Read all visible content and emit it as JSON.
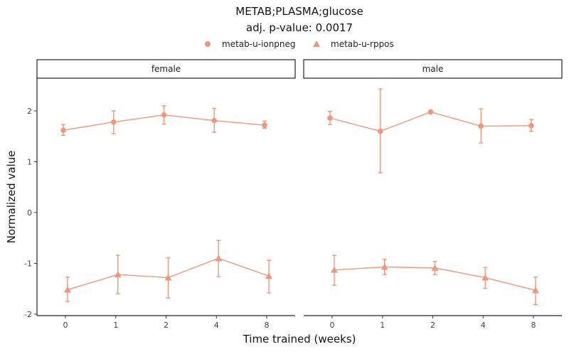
{
  "chart_data": {
    "type": "line",
    "title": "METAB;PLASMA;glucose",
    "subtitle": "adj. p-value: 0.0017",
    "xlabel": "Time trained (weeks)",
    "ylabel": "Normalized value",
    "categories": [
      "0",
      "1",
      "2",
      "4",
      "8"
    ],
    "yticks": [
      -2,
      -1,
      0,
      1,
      2
    ],
    "ylim": [
      -2.03,
      2.55
    ],
    "color": "#f0967a",
    "legend": {
      "position": "top",
      "entries": [
        {
          "name": "metab-u-ionpneg",
          "shape": "circle"
        },
        {
          "name": "metab-u-rppos",
          "shape": "triangle"
        }
      ]
    },
    "panels": [
      {
        "label": "female",
        "series": [
          {
            "name": "metab-u-ionpneg",
            "values": [
              1.62,
              1.78,
              1.92,
              1.81,
              1.72
            ],
            "lower": [
              1.52,
              1.55,
              1.74,
              1.58,
              1.66
            ],
            "upper": [
              1.73,
              2.0,
              2.1,
              2.05,
              1.8
            ]
          },
          {
            "name": "metab-u-rppos",
            "values": [
              -1.52,
              -1.22,
              -1.28,
              -0.9,
              -1.25
            ],
            "lower": [
              -1.75,
              -1.6,
              -1.68,
              -1.26,
              -1.58
            ],
            "upper": [
              -1.27,
              -0.84,
              -0.89,
              -0.55,
              -0.94
            ]
          }
        ]
      },
      {
        "label": "male",
        "series": [
          {
            "name": "metab-u-ionpneg",
            "values": [
              1.86,
              1.6,
              1.98,
              1.7,
              1.71
            ],
            "lower": [
              1.73,
              0.78,
              1.96,
              1.37,
              1.6
            ],
            "upper": [
              1.99,
              2.43,
              2.0,
              2.04,
              1.83
            ]
          },
          {
            "name": "metab-u-rppos",
            "values": [
              -1.13,
              -1.07,
              -1.09,
              -1.28,
              -1.53
            ],
            "lower": [
              -1.43,
              -1.22,
              -1.22,
              -1.49,
              -1.81
            ],
            "upper": [
              -0.84,
              -0.92,
              -0.96,
              -1.08,
              -1.27
            ]
          }
        ]
      }
    ]
  }
}
